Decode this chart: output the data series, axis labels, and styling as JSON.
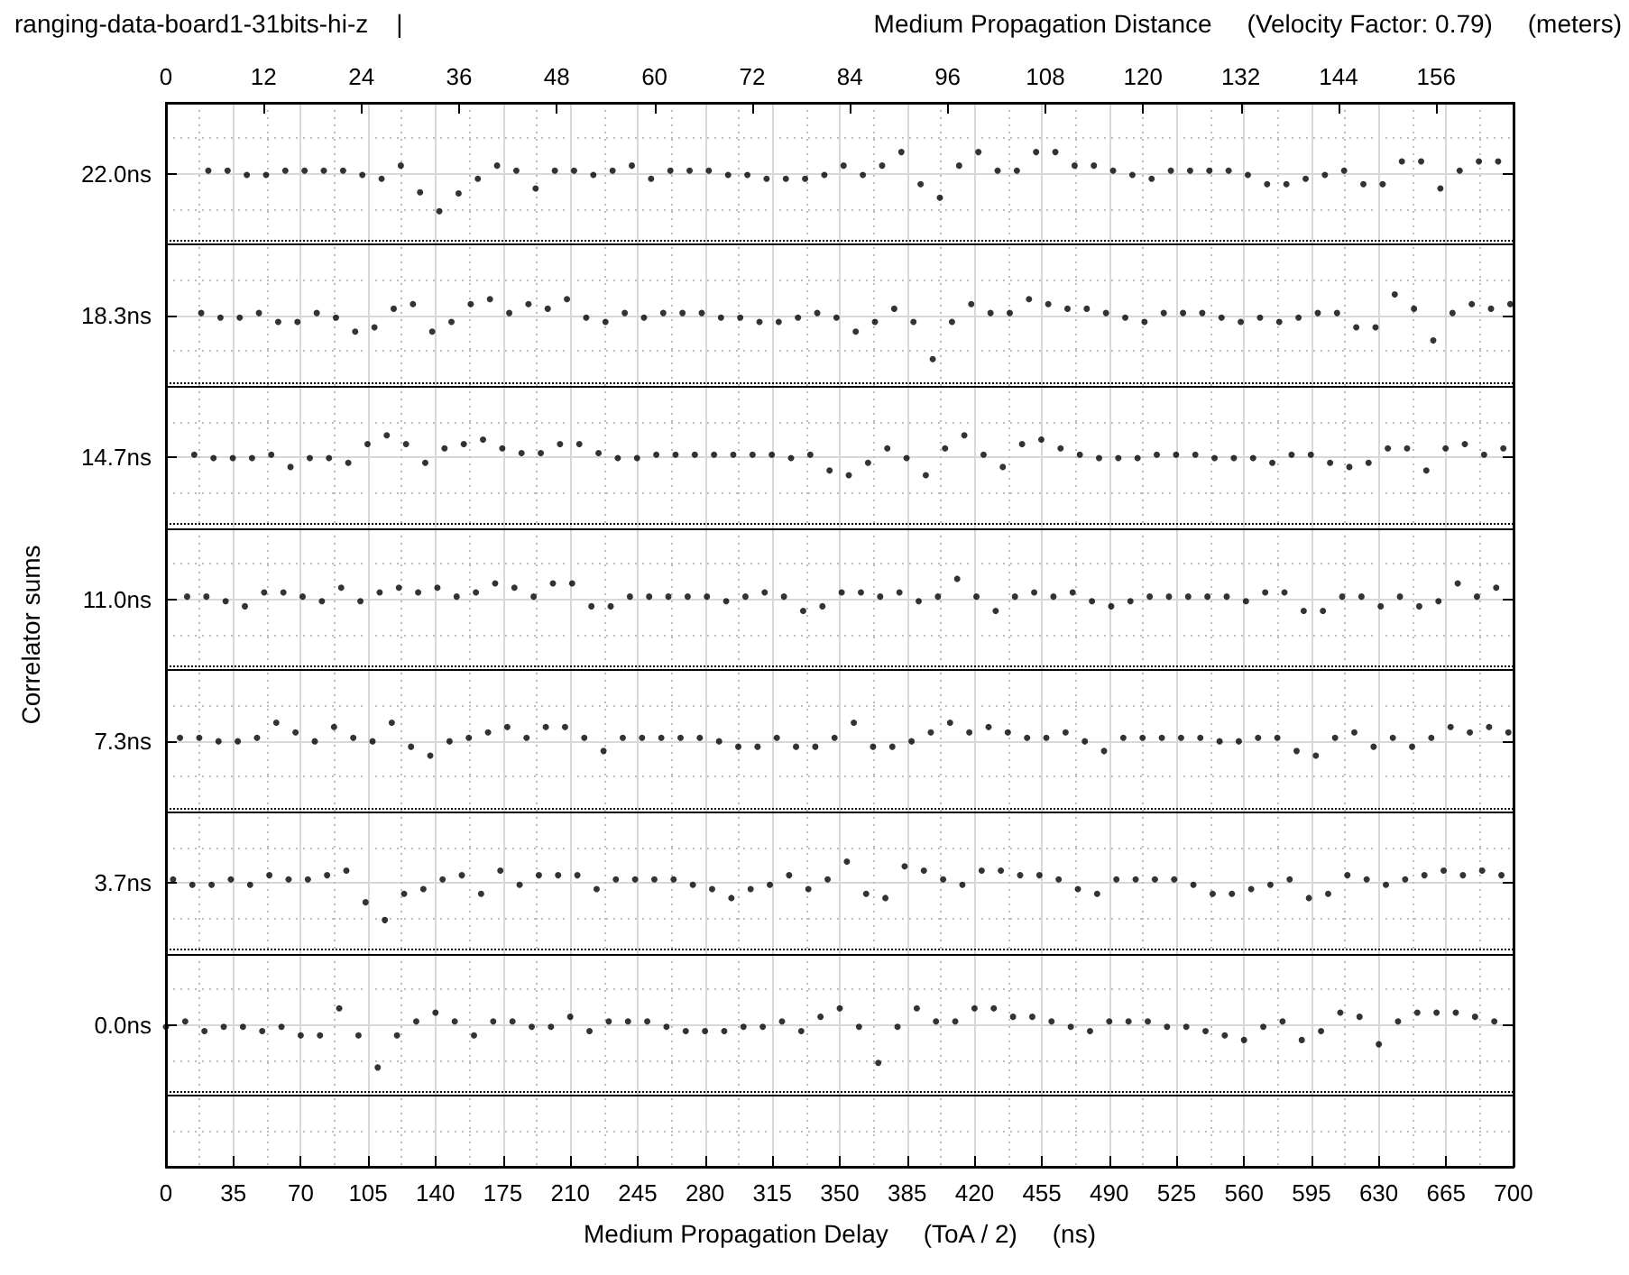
{
  "chart_data": {
    "type": "scatter",
    "title": "ranging-data-board1-31bits-hi-z    |",
    "x2label": "Medium Propagation Distance     (Velocity Factor: 0.79)     (meters)",
    "xlabel": "Medium Propagation Delay     (ToA / 2)     (ns)",
    "ylabel": "Correlator sums",
    "xlim": [
      0,
      700
    ],
    "xticks": [
      0,
      35,
      70,
      105,
      140,
      175,
      210,
      245,
      280,
      315,
      350,
      385,
      420,
      455,
      490,
      525,
      560,
      595,
      630,
      665,
      700
    ],
    "x2lim": [
      0,
      165.5
    ],
    "x2ticks": [
      0,
      12,
      24,
      36,
      48,
      60,
      72,
      84,
      96,
      108,
      120,
      132,
      144,
      156
    ],
    "ylim": [
      -3.667,
      23.833
    ],
    "yticks": [
      {
        "value": 0,
        "label": "0.0ns"
      },
      {
        "value": 3.667,
        "label": "3.7ns"
      },
      {
        "value": 7.333,
        "label": "7.3ns"
      },
      {
        "value": 11,
        "label": "11.0ns"
      },
      {
        "value": 14.667,
        "label": "14.7ns"
      },
      {
        "value": 18.333,
        "label": "18.3ns"
      },
      {
        "value": 22,
        "label": "22.0ns"
      }
    ],
    "grid": true,
    "marker": "circle",
    "ref_lines": [
      {
        "axis": "y",
        "value": 20.17,
        "line_style": "solid",
        "color": "#000000"
      },
      {
        "axis": "y",
        "value": 20.29,
        "line_style": "dotted",
        "color": "#000000"
      },
      {
        "axis": "y",
        "value": 16.5,
        "line_style": "solid",
        "color": "#000000"
      },
      {
        "axis": "y",
        "value": 16.62,
        "line_style": "dotted",
        "color": "#000000"
      },
      {
        "axis": "y",
        "value": 12.83,
        "line_style": "solid",
        "color": "#000000"
      },
      {
        "axis": "y",
        "value": 12.95,
        "line_style": "dotted",
        "color": "#000000"
      },
      {
        "axis": "y",
        "value": 9.17,
        "line_style": "solid",
        "color": "#000000"
      },
      {
        "axis": "y",
        "value": 9.29,
        "line_style": "dotted",
        "color": "#000000"
      },
      {
        "axis": "y",
        "value": 5.5,
        "line_style": "solid",
        "color": "#000000"
      },
      {
        "axis": "y",
        "value": 5.62,
        "line_style": "dotted",
        "color": "#000000"
      },
      {
        "axis": "y",
        "value": 1.83,
        "line_style": "solid",
        "color": "#000000"
      },
      {
        "axis": "y",
        "value": 1.95,
        "line_style": "dotted",
        "color": "#000000"
      },
      {
        "axis": "y",
        "value": -1.83,
        "line_style": "solid",
        "color": "#000000"
      },
      {
        "axis": "y",
        "value": -1.71,
        "line_style": "dotted",
        "color": "#000000"
      }
    ],
    "series": [
      {
        "color": "#000000",
        "x": [
          22,
          32,
          42,
          52,
          62,
          72,
          82,
          92,
          102,
          112,
          122,
          132,
          142,
          152,
          162,
          172,
          182,
          192,
          202,
          212,
          222,
          232,
          242,
          252,
          262,
          272,
          282,
          292,
          302,
          312,
          322,
          332,
          342,
          352,
          362,
          372,
          382,
          392,
          402,
          412,
          422,
          432,
          442,
          452,
          462,
          472,
          482,
          492,
          502,
          512,
          522,
          532,
          542,
          552,
          562,
          572,
          582,
          592,
          602,
          612,
          622,
          632,
          642,
          652,
          662,
          672,
          682,
          692
        ],
        "values": [
          22.08,
          22.08,
          21.97,
          21.97,
          22.08,
          22.08,
          22.08,
          22.08,
          21.97,
          21.87,
          22.21,
          21.52,
          21.03,
          21.49,
          21.87,
          22.21,
          22.08,
          21.62,
          22.08,
          22.08,
          21.97,
          22.08,
          22.21,
          21.87,
          22.08,
          22.08,
          22.08,
          21.97,
          21.97,
          21.87,
          21.87,
          21.87,
          21.97,
          22.21,
          21.97,
          22.21,
          22.56,
          21.73,
          21.38,
          22.21,
          22.56,
          22.08,
          22.08,
          22.56,
          22.56,
          22.21,
          22.21,
          22.08,
          21.97,
          21.87,
          22.08,
          22.08,
          22.08,
          22.08,
          21.97,
          21.73,
          21.73,
          21.87,
          21.97,
          22.08,
          21.73,
          21.73,
          22.32,
          22.32,
          21.62,
          22.08,
          22.32,
          22.32
        ]
      },
      {
        "color": "#000000",
        "x": [
          18.3,
          28.3,
          38.3,
          48.3,
          58.3,
          68.3,
          78.3,
          88.3,
          98.3,
          108.3,
          118.3,
          128.3,
          138.3,
          148.3,
          158.3,
          168.3,
          178.3,
          188.3,
          198.3,
          208.3,
          218.3,
          228.3,
          238.3,
          248.3,
          258.3,
          268.3,
          278.3,
          288.3,
          298.3,
          308.3,
          318.3,
          328.3,
          338.3,
          348.3,
          358.3,
          368.3,
          378.3,
          388.3,
          398.3,
          408.3,
          418.3,
          428.3,
          438.3,
          448.3,
          458.3,
          468.3,
          478.3,
          488.3,
          498.3,
          508.3,
          518.3,
          528.3,
          538.3,
          548.3,
          558.3,
          568.3,
          578.3,
          588.3,
          598.3,
          608.3,
          618.3,
          628.3,
          638.3,
          648.3,
          658.3,
          668.3,
          678.3,
          688.3,
          698.3
        ],
        "values": [
          18.4,
          18.28,
          18.28,
          18.4,
          18.17,
          18.17,
          18.4,
          18.28,
          17.92,
          18.03,
          18.51,
          18.63,
          17.92,
          18.17,
          18.63,
          18.76,
          18.4,
          18.63,
          18.51,
          18.76,
          18.28,
          18.17,
          18.4,
          18.28,
          18.4,
          18.4,
          18.4,
          18.28,
          18.28,
          18.17,
          18.17,
          18.28,
          18.4,
          18.28,
          17.92,
          18.17,
          18.51,
          18.17,
          17.21,
          18.17,
          18.63,
          18.4,
          18.4,
          18.76,
          18.63,
          18.51,
          18.51,
          18.4,
          18.28,
          18.17,
          18.4,
          18.4,
          18.4,
          18.28,
          18.17,
          18.28,
          18.17,
          18.28,
          18.4,
          18.4,
          18.03,
          18.03,
          18.88,
          18.51,
          17.69,
          18.4,
          18.63,
          18.51,
          18.63
        ]
      },
      {
        "color": "#000000",
        "x": [
          14.7,
          24.7,
          34.7,
          44.7,
          54.7,
          64.7,
          74.7,
          84.7,
          94.7,
          104.7,
          114.7,
          124.7,
          134.7,
          144.7,
          154.7,
          164.7,
          174.7,
          184.7,
          194.7,
          204.7,
          214.7,
          224.7,
          234.7,
          244.7,
          254.7,
          264.7,
          274.7,
          284.7,
          294.7,
          304.7,
          314.7,
          324.7,
          334.7,
          344.7,
          354.7,
          364.7,
          374.7,
          384.7,
          394.7,
          404.7,
          414.7,
          424.7,
          434.7,
          444.7,
          454.7,
          464.7,
          474.7,
          484.7,
          494.7,
          504.7,
          514.7,
          524.7,
          534.7,
          544.7,
          554.7,
          564.7,
          574.7,
          584.7,
          594.7,
          604.7,
          614.7,
          624.7,
          634.7,
          644.7,
          654.7,
          664.7,
          674.7,
          684.7,
          694.7
        ],
        "values": [
          14.74,
          14.65,
          14.65,
          14.65,
          14.74,
          14.42,
          14.65,
          14.65,
          14.53,
          15.01,
          15.24,
          15.01,
          14.53,
          14.9,
          15.01,
          15.13,
          14.9,
          14.78,
          14.78,
          15.01,
          15.01,
          14.78,
          14.65,
          14.65,
          14.74,
          14.74,
          14.74,
          14.74,
          14.74,
          14.74,
          14.74,
          14.65,
          14.74,
          14.33,
          14.21,
          14.53,
          14.9,
          14.65,
          14.21,
          14.9,
          15.24,
          14.74,
          14.42,
          15.01,
          15.13,
          14.9,
          14.74,
          14.65,
          14.65,
          14.65,
          14.74,
          14.74,
          14.74,
          14.65,
          14.65,
          14.65,
          14.53,
          14.74,
          14.74,
          14.53,
          14.42,
          14.53,
          14.9,
          14.9,
          14.33,
          14.9,
          15.01,
          14.74,
          14.9
        ]
      },
      {
        "color": "#000000",
        "x": [
          11,
          21,
          31,
          41,
          51,
          61,
          71,
          81,
          91,
          101,
          111,
          121,
          131,
          141,
          151,
          161,
          171,
          181,
          191,
          201,
          211,
          221,
          231,
          241,
          251,
          261,
          271,
          281,
          291,
          301,
          311,
          321,
          331,
          341,
          351,
          361,
          371,
          381,
          391,
          401,
          411,
          421,
          431,
          441,
          451,
          461,
          471,
          481,
          491,
          501,
          511,
          521,
          531,
          541,
          551,
          561,
          571,
          581,
          591,
          601,
          611,
          621,
          631,
          641,
          651,
          661,
          671,
          681,
          691
        ],
        "values": [
          11.07,
          11.07,
          10.95,
          10.82,
          11.18,
          11.18,
          11.07,
          10.95,
          11.3,
          10.95,
          11.18,
          11.3,
          11.18,
          11.3,
          11.07,
          11.18,
          11.41,
          11.3,
          11.07,
          11.41,
          11.41,
          10.82,
          10.82,
          11.07,
          11.07,
          11.07,
          11.07,
          11.07,
          10.95,
          11.07,
          11.18,
          11.07,
          10.7,
          10.82,
          11.18,
          11.18,
          11.07,
          11.18,
          10.95,
          11.07,
          11.53,
          11.07,
          10.7,
          11.07,
          11.18,
          11.07,
          11.18,
          10.95,
          10.82,
          10.95,
          11.07,
          11.07,
          11.07,
          11.07,
          11.07,
          10.95,
          11.18,
          11.18,
          10.7,
          10.7,
          11.07,
          11.07,
          10.82,
          11.07,
          10.82,
          10.95,
          11.41,
          11.07,
          11.3
        ]
      },
      {
        "color": "#000000",
        "x": [
          7.3,
          17.3,
          27.3,
          37.3,
          47.3,
          57.3,
          67.3,
          77.3,
          87.3,
          97.3,
          107.3,
          117.3,
          127.3,
          137.3,
          147.3,
          157.3,
          167.3,
          177.3,
          187.3,
          197.3,
          207.3,
          217.3,
          227.3,
          237.3,
          247.3,
          257.3,
          267.3,
          277.3,
          287.3,
          297.3,
          307.3,
          317.3,
          327.3,
          337.3,
          347.3,
          357.3,
          367.3,
          377.3,
          387.3,
          397.3,
          407.3,
          417.3,
          427.3,
          437.3,
          447.3,
          457.3,
          467.3,
          477.3,
          487.3,
          497.3,
          507.3,
          517.3,
          527.3,
          537.3,
          547.3,
          557.3,
          567.3,
          577.3,
          587.3,
          597.3,
          607.3,
          617.3,
          627.3,
          637.3,
          647.3,
          657.3,
          667.3,
          677.3,
          687.3,
          697.3
        ],
        "values": [
          7.42,
          7.42,
          7.33,
          7.33,
          7.42,
          7.81,
          7.56,
          7.33,
          7.7,
          7.42,
          7.33,
          7.81,
          7.19,
          6.96,
          7.33,
          7.42,
          7.56,
          7.7,
          7.42,
          7.7,
          7.7,
          7.42,
          7.08,
          7.42,
          7.42,
          7.42,
          7.42,
          7.42,
          7.33,
          7.19,
          7.19,
          7.42,
          7.19,
          7.19,
          7.42,
          7.81,
          7.19,
          7.19,
          7.33,
          7.56,
          7.81,
          7.56,
          7.7,
          7.56,
          7.42,
          7.42,
          7.56,
          7.33,
          7.08,
          7.42,
          7.42,
          7.42,
          7.42,
          7.42,
          7.33,
          7.33,
          7.42,
          7.42,
          7.08,
          6.96,
          7.42,
          7.56,
          7.19,
          7.42,
          7.19,
          7.42,
          7.7,
          7.56,
          7.7,
          7.56
        ]
      },
      {
        "color": "#000000",
        "x": [
          3.7,
          13.7,
          23.7,
          33.7,
          43.7,
          53.7,
          63.7,
          73.7,
          83.7,
          93.7,
          103.7,
          113.7,
          123.7,
          133.7,
          143.7,
          153.7,
          163.7,
          173.7,
          183.7,
          193.7,
          203.7,
          213.7,
          223.7,
          233.7,
          243.7,
          253.7,
          263.7,
          273.7,
          283.7,
          293.7,
          303.7,
          313.7,
          323.7,
          333.7,
          343.7,
          353.7,
          363.7,
          373.7,
          383.7,
          393.7,
          403.7,
          413.7,
          423.7,
          433.7,
          443.7,
          453.7,
          463.7,
          473.7,
          483.7,
          493.7,
          503.7,
          513.7,
          523.7,
          533.7,
          543.7,
          553.7,
          563.7,
          573.7,
          583.7,
          593.7,
          603.7,
          613.7,
          623.7,
          633.7,
          643.7,
          653.7,
          663.7,
          673.7,
          683.7,
          693.7
        ],
        "values": [
          3.76,
          3.62,
          3.62,
          3.76,
          3.62,
          3.87,
          3.76,
          3.76,
          3.87,
          3.99,
          3.17,
          2.71,
          3.39,
          3.51,
          3.76,
          3.87,
          3.39,
          3.99,
          3.62,
          3.87,
          3.87,
          3.87,
          3.51,
          3.76,
          3.76,
          3.76,
          3.76,
          3.62,
          3.51,
          3.28,
          3.51,
          3.62,
          3.87,
          3.51,
          3.76,
          4.22,
          3.39,
          3.28,
          4.1,
          3.99,
          3.76,
          3.62,
          3.99,
          3.99,
          3.87,
          3.87,
          3.76,
          3.51,
          3.39,
          3.76,
          3.76,
          3.76,
          3.76,
          3.62,
          3.39,
          3.39,
          3.51,
          3.62,
          3.76,
          3.28,
          3.39,
          3.87,
          3.76,
          3.62,
          3.76,
          3.87,
          3.99,
          3.87,
          3.99,
          3.87
        ]
      },
      {
        "color": "#000000",
        "x": [
          0,
          10,
          20,
          30,
          40,
          50,
          60,
          70,
          80,
          90,
          100,
          110,
          120,
          130,
          140,
          150,
          160,
          170,
          180,
          190,
          200,
          210,
          220,
          230,
          240,
          250,
          260,
          270,
          280,
          290,
          300,
          310,
          320,
          330,
          340,
          350,
          360,
          370,
          380,
          390,
          400,
          410,
          420,
          430,
          440,
          450,
          460,
          470,
          480,
          490,
          500,
          510,
          520,
          530,
          540,
          550,
          560,
          570,
          580,
          590,
          600,
          610,
          620,
          630,
          640,
          650,
          660,
          670,
          680,
          690
        ],
        "values": [
          -0.05,
          0.09,
          -0.16,
          -0.05,
          -0.05,
          -0.16,
          -0.05,
          -0.27,
          -0.27,
          0.43,
          -0.27,
          -1.1,
          -0.27,
          0.09,
          0.32,
          0.09,
          -0.27,
          0.09,
          0.09,
          -0.05,
          -0.05,
          0.21,
          -0.16,
          0.09,
          0.09,
          0.09,
          -0.05,
          -0.16,
          -0.16,
          -0.16,
          -0.05,
          -0.05,
          0.09,
          -0.16,
          0.21,
          0.43,
          -0.05,
          -0.98,
          -0.05,
          0.43,
          0.09,
          0.09,
          0.43,
          0.43,
          0.21,
          0.21,
          0.09,
          -0.05,
          -0.16,
          0.09,
          0.09,
          0.09,
          -0.05,
          -0.05,
          -0.16,
          -0.27,
          -0.39,
          -0.05,
          0.09,
          -0.39,
          -0.16,
          0.32,
          0.21,
          -0.5,
          0.09,
          0.32,
          0.32,
          0.32,
          0.21,
          0.09
        ]
      }
    ]
  }
}
